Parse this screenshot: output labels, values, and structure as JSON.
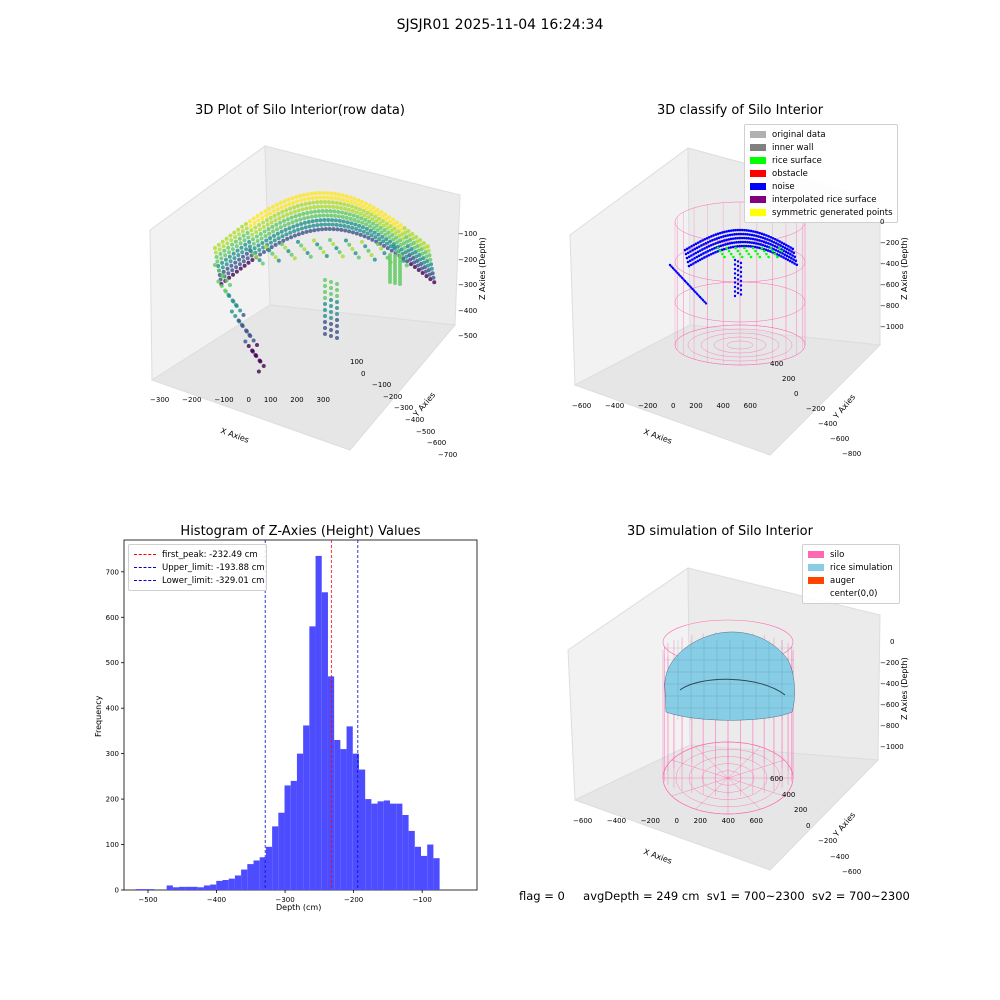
{
  "suptitle": "SJSJR01 2025-11-04 16:24:34",
  "footer": {
    "flag": "flag = 0",
    "avg": "avgDepth = 249 cm",
    "sv1": "sv1 = 700~2300",
    "sv2": "sv2 = 700~2300"
  },
  "colors": {
    "hist": "#4d4dff",
    "first_peak": "#ff0000",
    "limit": "#0000cc",
    "silo": "#ff69b4",
    "rice": "#87cde6",
    "auger": "#ff4500"
  },
  "chart_data": [
    {
      "type": "scatter",
      "title": "3D Plot of Silo Interior(row data)",
      "xlabel": "X Axies",
      "ylabel": "Y Axies",
      "zlabel": "Z Axies (Depth)",
      "x_ticks": [
        "−300",
        "−200",
        "−100",
        "0",
        "100",
        "200",
        "300"
      ],
      "y_ticks": [
        "100",
        "0",
        "−100",
        "−200",
        "−300",
        "−400",
        "−500",
        "−600",
        "−700"
      ],
      "z_ticks": [
        "−100",
        "−200",
        "−300",
        "−400",
        "−500"
      ],
      "colormap": "viridis",
      "grid": true
    },
    {
      "type": "scatter",
      "title": "3D classify of Silo Interior",
      "xlabel": "X Axies",
      "ylabel": "Y Axies",
      "zlabel": "Z Axies (Depth)",
      "x_ticks": [
        "−600",
        "−400",
        "−200",
        "0",
        "200",
        "400",
        "600"
      ],
      "y_ticks": [
        "400",
        "200",
        "0",
        "−200",
        "−400",
        "−600",
        "−800"
      ],
      "z_ticks": [
        "0",
        "−200",
        "−400",
        "−600",
        "−800",
        "−1000"
      ],
      "legend": [
        {
          "label": "original data",
          "color": "#b0b0b0"
        },
        {
          "label": "inner wall",
          "color": "#808080"
        },
        {
          "label": "rice surface",
          "color": "#00ff00"
        },
        {
          "label": "obstacle",
          "color": "#ff0000"
        },
        {
          "label": "noise",
          "color": "#0000ff"
        },
        {
          "label": "interpolated rice surface",
          "color": "#800080"
        },
        {
          "label": "symmetric generated points",
          "color": "#ffff00"
        }
      ],
      "legend_position": "top-right",
      "grid": true
    },
    {
      "type": "bar",
      "title": "Histogram of Z-Axies (Height) Values",
      "xlabel": "Depth (cm)",
      "ylabel": "Frequency",
      "xlim": [
        -535,
        -20
      ],
      "ylim": [
        0,
        770
      ],
      "x_ticks": [
        -500,
        -400,
        -300,
        -200,
        -100
      ],
      "x_tick_labels": [
        "−500",
        "−400",
        "−300",
        "−200",
        "−100"
      ],
      "y_ticks": [
        0,
        100,
        200,
        300,
        400,
        500,
        600,
        700
      ],
      "bin_start": -518,
      "bin_width": 9.05,
      "values": [
        2,
        2,
        2,
        0,
        0,
        10,
        6,
        7,
        7,
        7,
        6,
        10,
        12,
        20,
        22,
        25,
        32,
        45,
        57,
        65,
        72,
        95,
        140,
        170,
        230,
        240,
        300,
        362,
        580,
        735,
        655,
        470,
        330,
        310,
        360,
        300,
        265,
        200,
        190,
        195,
        197,
        190,
        190,
        165,
        130,
        95,
        75,
        100,
        70
      ],
      "lines": [
        {
          "label": "first_peak: -232.49 cm",
          "value": -232.49,
          "color": "#ff0000"
        },
        {
          "label": "Upper_limit: -193.88 cm",
          "value": -193.88,
          "color": "#0000cc"
        },
        {
          "label": "Lower_limit: -329.01 cm",
          "value": -329.01,
          "color": "#0000cc"
        }
      ],
      "legend_position": "top-left",
      "grid": false
    },
    {
      "type": "area",
      "title": "3D simulation of Silo Interior",
      "xlabel": "X Axies",
      "ylabel": "Y Axies",
      "zlabel": "Z Axies (Depth)",
      "x_ticks": [
        "−600",
        "−400",
        "−200",
        "0",
        "200",
        "400",
        "600"
      ],
      "y_ticks": [
        "600",
        "400",
        "200",
        "0",
        "−200",
        "−400",
        "−600"
      ],
      "z_ticks": [
        "0",
        "−200",
        "−400",
        "−600",
        "−800",
        "−1000"
      ],
      "legend": [
        {
          "label": "silo",
          "color": "#ff69b4"
        },
        {
          "label": "rice simulation",
          "color": "#87cde6"
        },
        {
          "label": "auger",
          "color": "#ff4500"
        },
        {
          "label": "center(0,0)",
          "color": "none"
        }
      ],
      "legend_position": "top-right",
      "grid": true
    }
  ]
}
